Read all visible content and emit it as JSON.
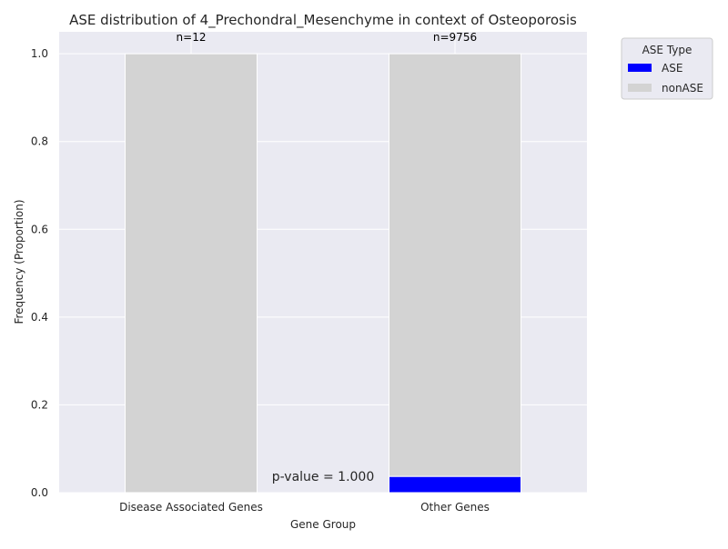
{
  "chart_data": {
    "type": "bar",
    "stacked": true,
    "title": "ASE distribution of 4_Prechondral_Mesenchyme in context of Osteoporosis",
    "xlabel": "Gene Group",
    "ylabel": "Frequency (Proportion)",
    "ylim": [
      0,
      1.05
    ],
    "yticks": [
      "0.0",
      "0.2",
      "0.4",
      "0.6",
      "0.8",
      "1.0"
    ],
    "ytick_values": [
      0,
      0.2,
      0.4,
      0.6,
      0.8,
      1.0
    ],
    "grid": true,
    "categories": [
      "Disease Associated Genes",
      "Other Genes"
    ],
    "series": [
      {
        "name": "ASE",
        "color": "#0000ff",
        "values": [
          0,
          0.037
        ]
      },
      {
        "name": "nonASE",
        "color": "#d3d3d3",
        "values": [
          1.0,
          0.963
        ]
      }
    ],
    "counts": [
      "n=12",
      "n=9756"
    ],
    "annotation": "p-value = 1.000",
    "legend": {
      "title": "ASE Type",
      "placement": "outside-top-right"
    },
    "background_color": "#eaeaf2"
  }
}
